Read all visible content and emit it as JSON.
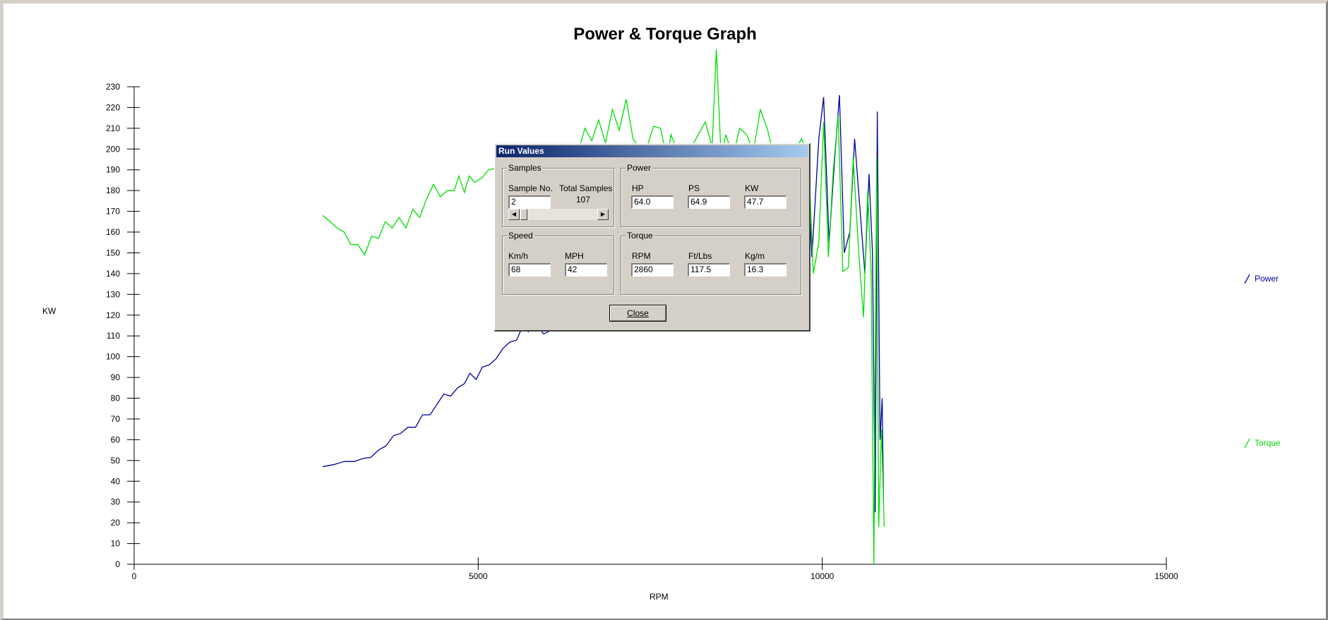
{
  "chart_data": {
    "type": "line",
    "title": "Power & Torque Graph",
    "xlabel": "RPM",
    "ylabel": "KW",
    "xlim": [
      0,
      15000
    ],
    "ylim": [
      0,
      230
    ],
    "x_ticks": [
      0,
      5000,
      10000,
      15000
    ],
    "y_ticks": [
      0,
      10,
      20,
      30,
      40,
      50,
      60,
      70,
      80,
      90,
      100,
      110,
      120,
      130,
      140,
      150,
      160,
      170,
      180,
      190,
      200,
      210,
      220,
      230
    ],
    "grid": false,
    "legend_position": "right",
    "series": [
      {
        "name": "Power",
        "color": "#000099",
        "points": [
          [
            2740,
            47
          ],
          [
            2900,
            48
          ],
          [
            3050,
            49.5
          ],
          [
            3200,
            49.5
          ],
          [
            3330,
            51
          ],
          [
            3440,
            51.5
          ],
          [
            3550,
            55
          ],
          [
            3660,
            57
          ],
          [
            3770,
            62
          ],
          [
            3870,
            63
          ],
          [
            3980,
            66
          ],
          [
            4090,
            66
          ],
          [
            4190,
            72
          ],
          [
            4300,
            72
          ],
          [
            4400,
            77
          ],
          [
            4500,
            82
          ],
          [
            4600,
            81
          ],
          [
            4700,
            85
          ],
          [
            4800,
            87
          ],
          [
            4880,
            92
          ],
          [
            4970,
            89
          ],
          [
            5060,
            95
          ],
          [
            5160,
            96
          ],
          [
            5260,
            99
          ],
          [
            5360,
            104
          ],
          [
            5460,
            107
          ],
          [
            5560,
            108
          ],
          [
            5660,
            116
          ],
          [
            5730,
            112
          ],
          [
            5800,
            116
          ],
          [
            5880,
            114
          ],
          [
            5950,
            111
          ],
          [
            6020,
            112
          ],
          [
            6100,
            118
          ],
          [
            9700,
            202
          ],
          [
            9780,
            196
          ],
          [
            9850,
            148
          ],
          [
            9950,
            205
          ],
          [
            10020,
            225
          ],
          [
            10100,
            155
          ],
          [
            10180,
            195
          ],
          [
            10250,
            226
          ],
          [
            10320,
            150
          ],
          [
            10400,
            160
          ],
          [
            10470,
            205
          ],
          [
            10550,
            170
          ],
          [
            10620,
            140
          ],
          [
            10680,
            188
          ],
          [
            10730,
            150
          ],
          [
            10770,
            25
          ],
          [
            10800,
            218
          ],
          [
            10840,
            60
          ],
          [
            10870,
            80
          ],
          [
            10890,
            30
          ]
        ]
      },
      {
        "name": "Torque",
        "color": "#00dd00",
        "points": [
          [
            2740,
            168
          ],
          [
            2850,
            165
          ],
          [
            2950,
            162
          ],
          [
            3050,
            160
          ],
          [
            3150,
            154
          ],
          [
            3250,
            154
          ],
          [
            3350,
            149
          ],
          [
            3450,
            158
          ],
          [
            3550,
            157
          ],
          [
            3650,
            165
          ],
          [
            3750,
            162
          ],
          [
            3850,
            167
          ],
          [
            3950,
            162
          ],
          [
            4050,
            171
          ],
          [
            4150,
            167
          ],
          [
            4250,
            176
          ],
          [
            4350,
            183
          ],
          [
            4450,
            177
          ],
          [
            4550,
            180
          ],
          [
            4650,
            180
          ],
          [
            4720,
            187
          ],
          [
            4800,
            179
          ],
          [
            4870,
            187
          ],
          [
            4950,
            184
          ],
          [
            5050,
            186
          ],
          [
            5150,
            190
          ],
          [
            6450,
            198
          ],
          [
            6550,
            210
          ],
          [
            6650,
            204
          ],
          [
            6750,
            214
          ],
          [
            6850,
            203
          ],
          [
            6950,
            219
          ],
          [
            7050,
            209
          ],
          [
            7150,
            224
          ],
          [
            7250,
            205
          ],
          [
            7350,
            200
          ],
          [
            7450,
            201
          ],
          [
            7550,
            211
          ],
          [
            7650,
            210
          ],
          [
            7750,
            194
          ],
          [
            7800,
            207
          ],
          [
            7900,
            199
          ],
          [
            8000,
            200
          ],
          [
            8100,
            201
          ],
          [
            8200,
            207
          ],
          [
            8300,
            213
          ],
          [
            8400,
            201
          ],
          [
            8460,
            248
          ],
          [
            8530,
            196
          ],
          [
            8600,
            207
          ],
          [
            8700,
            196
          ],
          [
            8800,
            210
          ],
          [
            8900,
            207
          ],
          [
            9000,
            199
          ],
          [
            9100,
            219
          ],
          [
            9200,
            210
          ],
          [
            9300,
            196
          ],
          [
            9400,
            200
          ],
          [
            9500,
            190
          ],
          [
            9600,
            199
          ],
          [
            9700,
            205
          ],
          [
            9800,
            196
          ],
          [
            9870,
            140
          ],
          [
            9950,
            155
          ],
          [
            10020,
            213
          ],
          [
            10090,
            148
          ],
          [
            10160,
            190
          ],
          [
            10230,
            216
          ],
          [
            10300,
            141
          ],
          [
            10380,
            143
          ],
          [
            10450,
            196
          ],
          [
            10530,
            150
          ],
          [
            10600,
            119
          ],
          [
            10660,
            180
          ],
          [
            10710,
            140
          ],
          [
            10750,
            0
          ],
          [
            10790,
            196
          ],
          [
            10820,
            18
          ],
          [
            10860,
            65
          ],
          [
            10900,
            18
          ]
        ]
      }
    ]
  },
  "dialog": {
    "title": "Run Values",
    "samples": {
      "group_label": "Samples",
      "sample_no_label": "Sample No.",
      "sample_no_value": "2",
      "total_label": "Total Samples",
      "total_value": "107"
    },
    "power": {
      "group_label": "Power",
      "hp_label": "HP",
      "hp_value": "64.0",
      "ps_label": "PS",
      "ps_value": "64.9",
      "kw_label": "KW",
      "kw_value": "47.7"
    },
    "speed": {
      "group_label": "Speed",
      "kmh_label": "Km/h",
      "kmh_value": "68",
      "mph_label": "MPH",
      "mph_value": "42"
    },
    "torque": {
      "group_label": "Torque",
      "rpm_label": "RPM",
      "rpm_value": "2860",
      "ftlbs_label": "Ft/Lbs",
      "ftlbs_value": "117.5",
      "kgm_label": "Kg/m",
      "kgm_value": "16.3"
    },
    "close_label": "Close"
  }
}
